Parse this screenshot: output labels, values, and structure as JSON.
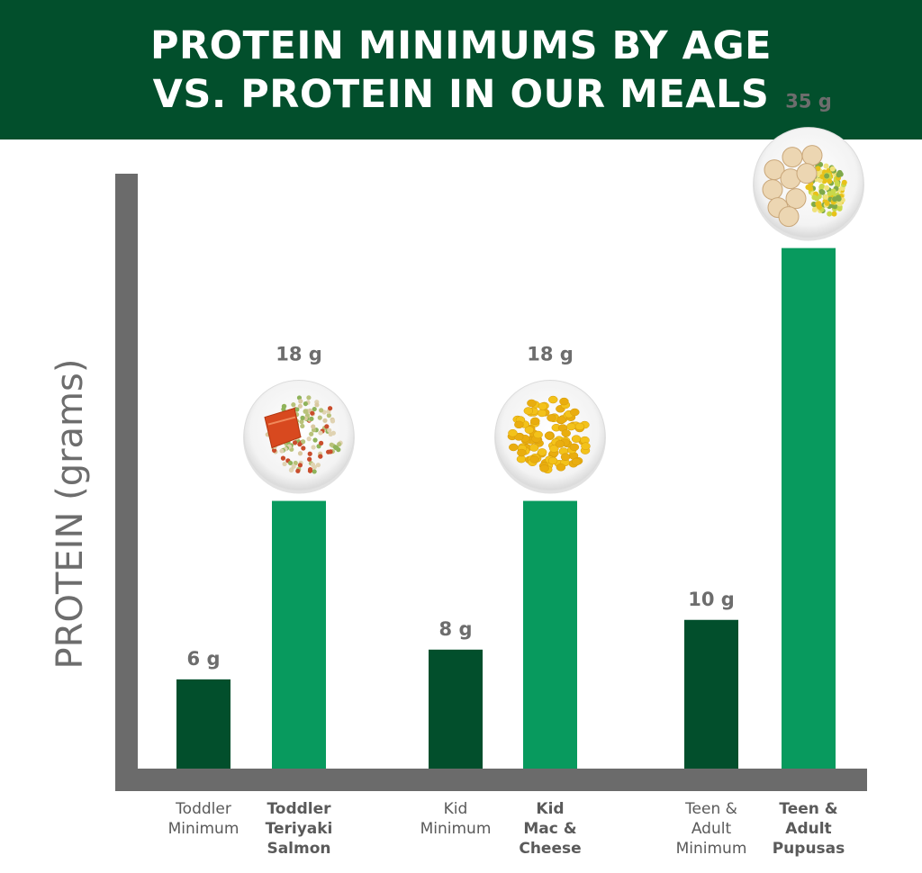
{
  "header": {
    "title_line1": "PROTEIN MINIMUMS BY AGE",
    "title_line2": "VS. PROTEIN IN OUR MEALS"
  },
  "colors": {
    "banner": "#024f2c",
    "minimum_bar": "#024f2c",
    "meal_bar": "#089a5e",
    "axis": "#6b6b6b",
    "text": "#6d6d6d"
  },
  "chart_data": {
    "type": "bar",
    "title": "PROTEIN MINIMUMS BY AGE VS. PROTEIN IN OUR MEALS",
    "ylabel": "PROTEIN (grams)",
    "xlabel": "",
    "ylim": [
      0,
      40
    ],
    "grid": false,
    "categories": [
      [
        "Toddler",
        "Minimum"
      ],
      [
        "Toddler",
        "Teriyaki",
        "Salmon"
      ],
      [
        "Kid",
        "Minimum"
      ],
      [
        "Kid",
        "Mac &",
        "Cheese"
      ],
      [
        "Teen &",
        "Adult",
        "Minimum"
      ],
      [
        "Teen &",
        "Adult",
        "Pupusas"
      ]
    ],
    "values": [
      6,
      18,
      8,
      18,
      10,
      35
    ],
    "value_labels": [
      "6 g",
      "18 g",
      "8 g",
      "18 g",
      "10 g",
      "35 g"
    ],
    "kinds": [
      "minimum",
      "meal",
      "minimum",
      "meal",
      "minimum",
      "meal"
    ],
    "meal_images": [
      "teriyaki-salmon-plate",
      "mac-and-cheese-plate",
      "pupusas-plate"
    ]
  }
}
